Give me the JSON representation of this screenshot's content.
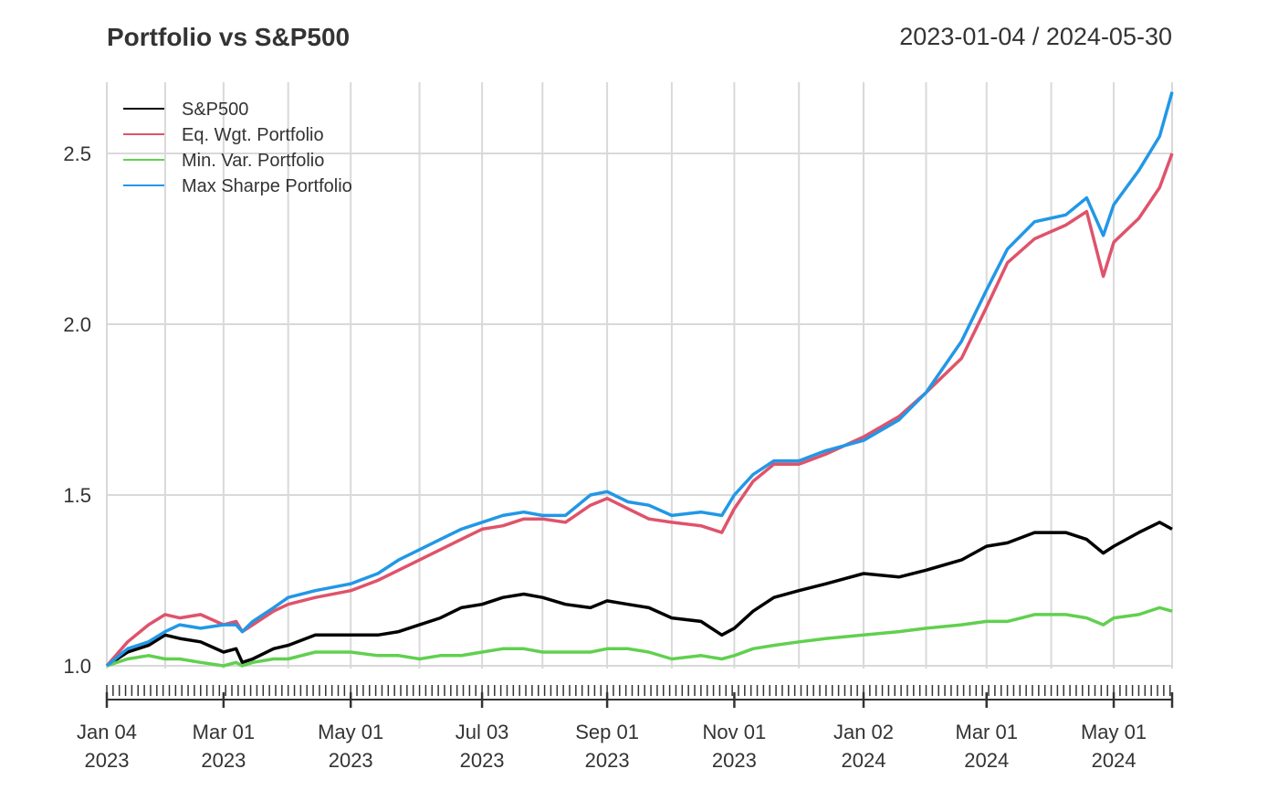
{
  "chart_data": {
    "type": "line",
    "title": "Portfolio vs S&P500",
    "date_range": "2023-01-04 / 2024-05-30",
    "ylim": [
      0.94,
      2.72
    ],
    "yticks": [
      "1.0",
      "1.5",
      "2.0",
      "2.5"
    ],
    "ytick_values": [
      1.0,
      1.5,
      2.0,
      2.5
    ],
    "xlim": [
      0,
      511
    ],
    "xticks": [
      {
        "pos": 0,
        "line1": "Jan 04",
        "line2": "2023"
      },
      {
        "pos": 56,
        "line1": "Mar 01",
        "line2": "2023"
      },
      {
        "pos": 117,
        "line1": "May 01",
        "line2": "2023"
      },
      {
        "pos": 180,
        "line1": "Jul 03",
        "line2": "2023"
      },
      {
        "pos": 240,
        "line1": "Sep 01",
        "line2": "2023"
      },
      {
        "pos": 301,
        "line1": "Nov 01",
        "line2": "2023"
      },
      {
        "pos": 363,
        "line1": "Jan 02",
        "line2": "2024"
      },
      {
        "pos": 422,
        "line1": "Mar 01",
        "line2": "2024"
      },
      {
        "pos": 483,
        "line1": "May 01",
        "line2": "2024"
      }
    ],
    "minor_grid": [
      28,
      87,
      150,
      209,
      271,
      332,
      393,
      453
    ],
    "legend": "top-left",
    "series": [
      {
        "name": "S&P500",
        "color": "#000000",
        "x": [
          0,
          10,
          20,
          28,
          35,
          45,
          56,
          62,
          65,
          70,
          80,
          87,
          100,
          117,
          130,
          140,
          150,
          160,
          170,
          180,
          190,
          200,
          209,
          220,
          232,
          240,
          250,
          260,
          271,
          285,
          295,
          301,
          310,
          320,
          332,
          345,
          363,
          380,
          393,
          410,
          422,
          432,
          445,
          460,
          470,
          478,
          483,
          495,
          505,
          511
        ],
        "values": [
          1.0,
          1.04,
          1.06,
          1.09,
          1.08,
          1.07,
          1.04,
          1.05,
          1.01,
          1.02,
          1.05,
          1.06,
          1.09,
          1.09,
          1.09,
          1.1,
          1.12,
          1.14,
          1.17,
          1.18,
          1.2,
          1.21,
          1.2,
          1.18,
          1.17,
          1.19,
          1.18,
          1.17,
          1.14,
          1.13,
          1.09,
          1.11,
          1.16,
          1.2,
          1.22,
          1.24,
          1.27,
          1.26,
          1.28,
          1.31,
          1.35,
          1.36,
          1.39,
          1.39,
          1.37,
          1.33,
          1.35,
          1.39,
          1.42,
          1.4
        ]
      },
      {
        "name": "Eq. Wgt. Portfolio",
        "color": "#DF536B",
        "x": [
          0,
          10,
          20,
          28,
          35,
          45,
          56,
          62,
          65,
          70,
          80,
          87,
          100,
          117,
          130,
          140,
          150,
          160,
          170,
          180,
          190,
          200,
          209,
          220,
          232,
          240,
          250,
          260,
          271,
          285,
          295,
          301,
          310,
          320,
          332,
          345,
          363,
          380,
          393,
          410,
          422,
          432,
          445,
          460,
          470,
          478,
          483,
          495,
          505,
          511
        ],
        "values": [
          1.0,
          1.07,
          1.12,
          1.15,
          1.14,
          1.15,
          1.12,
          1.13,
          1.1,
          1.12,
          1.16,
          1.18,
          1.2,
          1.22,
          1.25,
          1.28,
          1.31,
          1.34,
          1.37,
          1.4,
          1.41,
          1.43,
          1.43,
          1.42,
          1.47,
          1.49,
          1.46,
          1.43,
          1.42,
          1.41,
          1.39,
          1.46,
          1.54,
          1.59,
          1.59,
          1.62,
          1.67,
          1.73,
          1.8,
          1.9,
          2.05,
          2.18,
          2.25,
          2.29,
          2.33,
          2.14,
          2.24,
          2.31,
          2.4,
          2.5
        ]
      },
      {
        "name": "Min. Var. Portfolio",
        "color": "#61D04F",
        "x": [
          0,
          10,
          20,
          28,
          35,
          45,
          56,
          62,
          65,
          70,
          80,
          87,
          100,
          117,
          130,
          140,
          150,
          160,
          170,
          180,
          190,
          200,
          209,
          220,
          232,
          240,
          250,
          260,
          271,
          285,
          295,
          301,
          310,
          320,
          332,
          345,
          363,
          380,
          393,
          410,
          422,
          432,
          445,
          460,
          470,
          478,
          483,
          495,
          505,
          511
        ],
        "values": [
          1.0,
          1.02,
          1.03,
          1.02,
          1.02,
          1.01,
          1.0,
          1.01,
          1.0,
          1.01,
          1.02,
          1.02,
          1.04,
          1.04,
          1.03,
          1.03,
          1.02,
          1.03,
          1.03,
          1.04,
          1.05,
          1.05,
          1.04,
          1.04,
          1.04,
          1.05,
          1.05,
          1.04,
          1.02,
          1.03,
          1.02,
          1.03,
          1.05,
          1.06,
          1.07,
          1.08,
          1.09,
          1.1,
          1.11,
          1.12,
          1.13,
          1.13,
          1.15,
          1.15,
          1.14,
          1.12,
          1.14,
          1.15,
          1.17,
          1.16
        ]
      },
      {
        "name": "Max Sharpe Portfolio",
        "color": "#2297E6",
        "x": [
          0,
          10,
          20,
          28,
          35,
          45,
          56,
          62,
          65,
          70,
          80,
          87,
          100,
          117,
          130,
          140,
          150,
          160,
          170,
          180,
          190,
          200,
          209,
          220,
          232,
          240,
          250,
          260,
          271,
          285,
          295,
          301,
          310,
          320,
          332,
          345,
          363,
          380,
          393,
          410,
          422,
          432,
          445,
          460,
          470,
          478,
          483,
          495,
          505,
          511
        ],
        "values": [
          1.0,
          1.05,
          1.07,
          1.1,
          1.12,
          1.11,
          1.12,
          1.12,
          1.1,
          1.13,
          1.17,
          1.2,
          1.22,
          1.24,
          1.27,
          1.31,
          1.34,
          1.37,
          1.4,
          1.42,
          1.44,
          1.45,
          1.44,
          1.44,
          1.5,
          1.51,
          1.48,
          1.47,
          1.44,
          1.45,
          1.44,
          1.5,
          1.56,
          1.6,
          1.6,
          1.63,
          1.66,
          1.72,
          1.8,
          1.95,
          2.1,
          2.22,
          2.3,
          2.32,
          2.37,
          2.26,
          2.35,
          2.45,
          2.55,
          2.68
        ]
      }
    ]
  }
}
